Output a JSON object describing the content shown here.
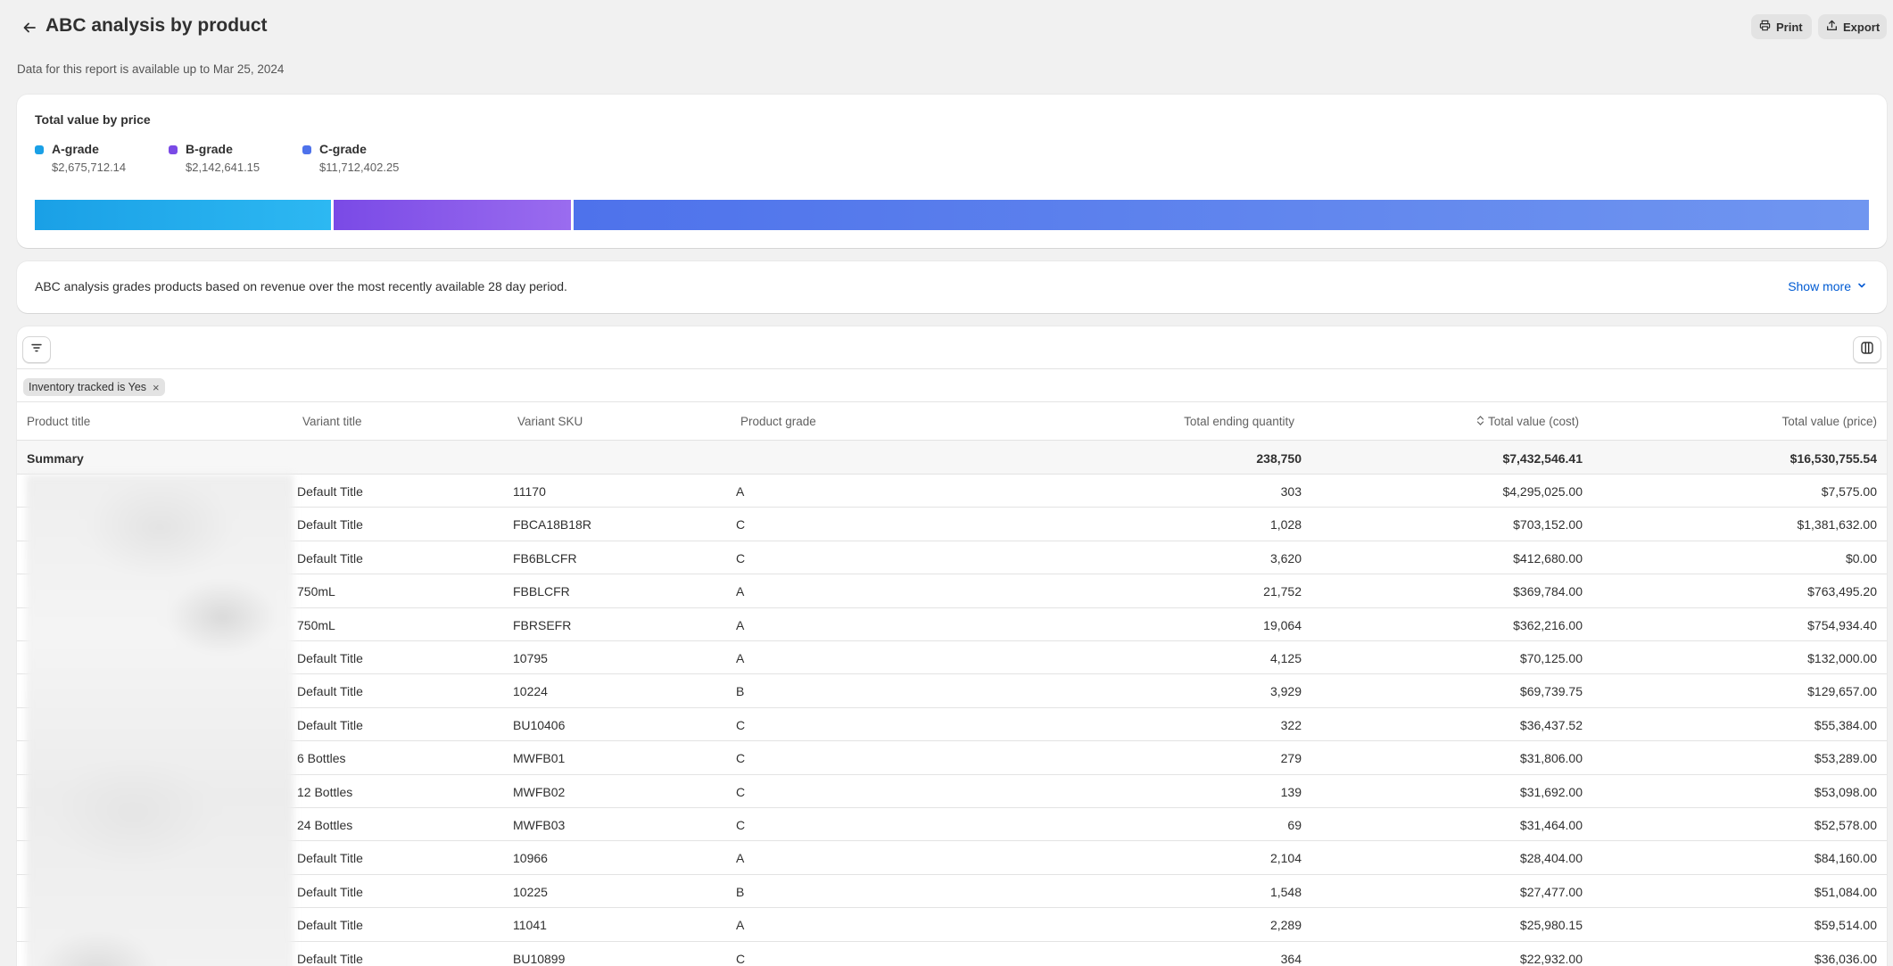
{
  "header": {
    "title": "ABC analysis by product",
    "print_label": "Print",
    "export_label": "Export"
  },
  "data_note": "Data for this report is available up to Mar 25, 2024",
  "chart_card": {
    "title": "Total value by price",
    "legend": [
      {
        "label": "A-grade",
        "value": "$2,675,712.14",
        "color": "#1aa0e6"
      },
      {
        "label": "B-grade",
        "value": "$2,142,641.15",
        "color": "#7a4ae6"
      },
      {
        "label": "C-grade",
        "value": "$11,712,402.25",
        "color": "#4e72eb"
      }
    ]
  },
  "chart_data": {
    "type": "bar",
    "orientation": "horizontal-stacked",
    "title": "Total value by price",
    "categories": [
      "A-grade",
      "B-grade",
      "C-grade"
    ],
    "values": [
      2675712.14,
      2142641.15,
      11712402.25
    ],
    "colors": [
      "#1aa0e6",
      "#7a4ae6",
      "#4e72eb"
    ]
  },
  "info": {
    "text": "ABC analysis grades products based on revenue over the most recently available 28 day period.",
    "show_more_label": "Show more"
  },
  "filter_chip": "Inventory tracked is Yes",
  "table": {
    "columns": [
      "Product title",
      "Variant title",
      "Variant SKU",
      "Product grade",
      "Total ending quantity",
      "Total value (cost)",
      "Total value (price)"
    ],
    "summary": {
      "label": "Summary",
      "quantity": "238,750",
      "cost": "$7,432,546.41",
      "price": "$16,530,755.54"
    },
    "rows": [
      {
        "variant": "Default Title",
        "sku": "11170",
        "grade": "A",
        "qty": "303",
        "cost": "$4,295,025.00",
        "price": "$7,575.00"
      },
      {
        "variant": "Default Title",
        "sku": "FBCA18B18R",
        "grade": "C",
        "qty": "1,028",
        "cost": "$703,152.00",
        "price": "$1,381,632.00"
      },
      {
        "variant": "Default Title",
        "sku": "FB6BLCFR",
        "grade": "C",
        "qty": "3,620",
        "cost": "$412,680.00",
        "price": "$0.00"
      },
      {
        "variant": "750mL",
        "sku": "FBBLCFR",
        "grade": "A",
        "qty": "21,752",
        "cost": "$369,784.00",
        "price": "$763,495.20"
      },
      {
        "variant": "750mL",
        "sku": "FBRSEFR",
        "grade": "A",
        "qty": "19,064",
        "cost": "$362,216.00",
        "price": "$754,934.40"
      },
      {
        "variant": "Default Title",
        "sku": "10795",
        "grade": "A",
        "qty": "4,125",
        "cost": "$70,125.00",
        "price": "$132,000.00"
      },
      {
        "variant": "Default Title",
        "sku": "10224",
        "grade": "B",
        "qty": "3,929",
        "cost": "$69,739.75",
        "price": "$129,657.00"
      },
      {
        "variant": "Default Title",
        "sku": "BU10406",
        "grade": "C",
        "qty": "322",
        "cost": "$36,437.52",
        "price": "$55,384.00"
      },
      {
        "variant": "6 Bottles",
        "sku": "MWFB01",
        "grade": "C",
        "qty": "279",
        "cost": "$31,806.00",
        "price": "$53,289.00"
      },
      {
        "variant": "12 Bottles",
        "sku": "MWFB02",
        "grade": "C",
        "qty": "139",
        "cost": "$31,692.00",
        "price": "$53,098.00"
      },
      {
        "variant": "24 Bottles",
        "sku": "MWFB03",
        "grade": "C",
        "qty": "69",
        "cost": "$31,464.00",
        "price": "$52,578.00"
      },
      {
        "variant": "Default Title",
        "sku": "10966",
        "grade": "A",
        "qty": "2,104",
        "cost": "$28,404.00",
        "price": "$84,160.00"
      },
      {
        "variant": "Default Title",
        "sku": "10225",
        "grade": "B",
        "qty": "1,548",
        "cost": "$27,477.00",
        "price": "$51,084.00"
      },
      {
        "variant": "Default Title",
        "sku": "11041",
        "grade": "A",
        "qty": "2,289",
        "cost": "$25,980.15",
        "price": "$59,514.00"
      },
      {
        "variant": "Default Title",
        "sku": "BU10899",
        "grade": "C",
        "qty": "364",
        "cost": "$22,932.00",
        "price": "$36,036.00"
      }
    ]
  }
}
